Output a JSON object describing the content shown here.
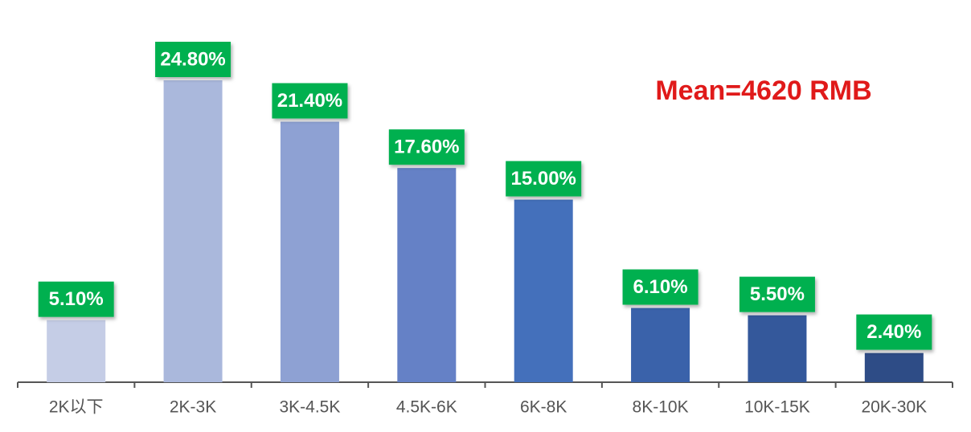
{
  "chart_data": {
    "type": "bar",
    "annotation": "Mean=4620 RMB",
    "categories": [
      "2K以下",
      "2K-3K",
      "3K-4.5K",
      "4.5K-6K",
      "6K-8K",
      "8K-10K",
      "10K-15K",
      "20K-30K"
    ],
    "values": [
      5.1,
      24.8,
      21.4,
      17.6,
      15.0,
      6.1,
      5.5,
      2.4
    ],
    "value_labels": [
      "5.10%",
      "24.80%",
      "21.40%",
      "17.60%",
      "15.00%",
      "6.10%",
      "5.50%",
      "2.40%"
    ],
    "colors": [
      "#c5cde6",
      "#aab8dc",
      "#8ea1d3",
      "#6581c6",
      "#4470bb",
      "#3a62aa",
      "#34589b",
      "#2e4c86"
    ],
    "label_color": "#00b050",
    "annotation_color": "#e01a1a"
  }
}
